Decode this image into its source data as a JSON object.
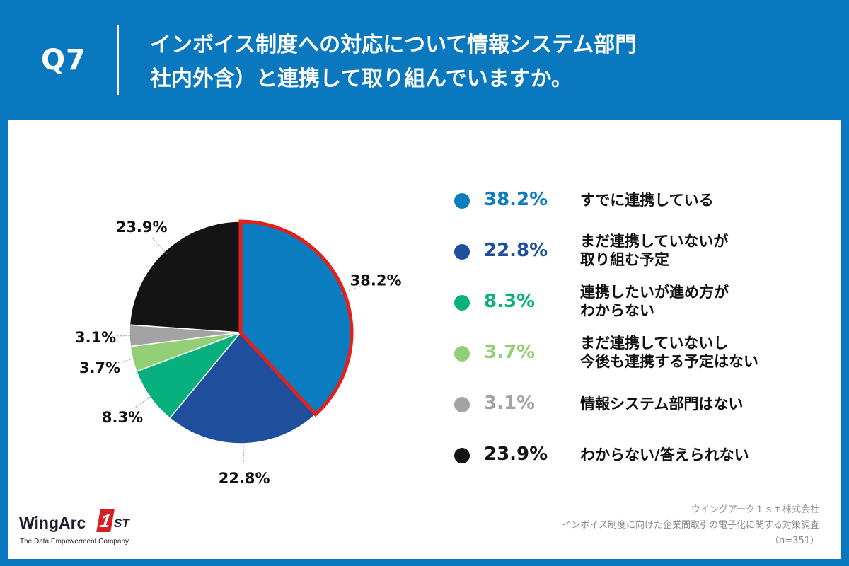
{
  "header": {
    "qnum": "Q7",
    "line1": "インボイス制度への対応について情報システム部門",
    "line2": "社内外含）と連携して取り組んでいますか。"
  },
  "chart_data": {
    "type": "pie",
    "title": "インボイス制度への対応について情報システム部門（社内外含）と連携して取り組んでいますか。",
    "n": 351,
    "highlight_index": 0,
    "slices": [
      {
        "label": "すでに連携している",
        "value": 38.2,
        "value_label": "38.2%",
        "color": "#0a7cbf",
        "label_color": "#0a7cbf"
      },
      {
        "label": "まだ連携していないが取り組む予定",
        "value": 22.8,
        "value_label": "22.8%",
        "color": "#1f4e9c",
        "label_color": "#1f4e9c"
      },
      {
        "label": "連携したいが進め方がわからない",
        "value": 8.3,
        "value_label": "8.3%",
        "color": "#08b07d",
        "label_color": "#08b07d"
      },
      {
        "label": "まだ連携していないし今後も連携する予定はない",
        "value": 3.7,
        "value_label": "3.7%",
        "color": "#92cf76",
        "label_color": "#92cf76"
      },
      {
        "label": "情報システム部門はない",
        "value": 3.1,
        "value_label": "3.1%",
        "color": "#a3a3a3",
        "label_color": "#a3a3a3"
      },
      {
        "label": "わからない/答えられない",
        "value": 23.9,
        "value_label": "23.9%",
        "color": "#141414",
        "label_color": "#141414"
      }
    ]
  },
  "legend": [
    {
      "pct": "38.2%",
      "lines": [
        "すでに連携している"
      ]
    },
    {
      "pct": "22.8%",
      "lines": [
        "まだ連携していないが",
        "取り組む予定"
      ]
    },
    {
      "pct": "8.3%",
      "lines": [
        "連携したいが進め方が",
        "わからない"
      ]
    },
    {
      "pct": "3.7%",
      "lines": [
        "まだ連携していないし",
        "今後も連携する予定はない"
      ]
    },
    {
      "pct": "3.1%",
      "lines": [
        "情報システム部門はない"
      ]
    },
    {
      "pct": "23.9%",
      "lines": [
        "わからない/答えられない"
      ]
    }
  ],
  "logo": {
    "name": "WingArc",
    "badge": "1",
    "suffix": "ST",
    "tagline": "The Data Empowerment Company"
  },
  "credit": {
    "company": "ウイングアーク１ｓｔ株式会社",
    "survey": "インボイス制度に向けた企業間取引の電子化に関する対策調査",
    "sample": "（n=351）"
  },
  "colors": {
    "header_bg": "#0a78be",
    "highlight_stroke": "#e3211b"
  }
}
